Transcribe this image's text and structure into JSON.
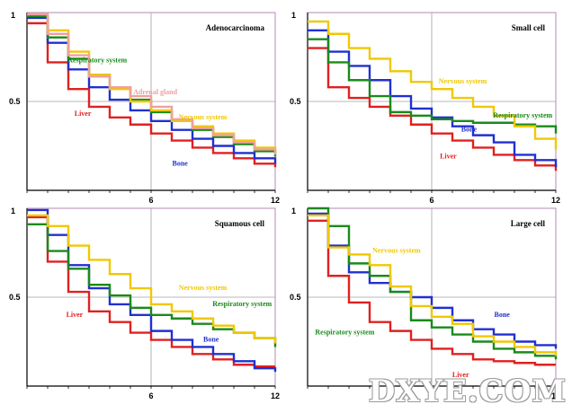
{
  "chart_data": [
    {
      "type": "line",
      "step": true,
      "title": "Adenocarcinoma",
      "xlim": [
        0,
        12
      ],
      "ylim": [
        0,
        1
      ],
      "xticks": [
        "6",
        "12"
      ],
      "yticks": [
        "1",
        "0.5"
      ],
      "series": [
        {
          "name": "Liver",
          "color": "#e02020",
          "x": [
            0,
            1,
            2,
            3,
            4,
            5,
            6,
            7,
            8,
            9,
            10,
            11,
            12
          ],
          "y": [
            0.94,
            0.72,
            0.57,
            0.47,
            0.41,
            0.37,
            0.32,
            0.28,
            0.24,
            0.21,
            0.18,
            0.15,
            0.13
          ]
        },
        {
          "name": "Bone",
          "color": "#2030d0",
          "x": [
            0,
            1,
            2,
            3,
            4,
            5,
            6,
            7,
            8,
            9,
            10,
            11,
            12
          ],
          "y": [
            0.97,
            0.83,
            0.68,
            0.58,
            0.51,
            0.45,
            0.39,
            0.34,
            0.29,
            0.25,
            0.21,
            0.18,
            0.15
          ]
        },
        {
          "name": "Respiratory system",
          "color": "#1a8a1a",
          "x": [
            0,
            1,
            2,
            3,
            4,
            5,
            6,
            7,
            8,
            9,
            10,
            11,
            12
          ],
          "y": [
            0.98,
            0.86,
            0.74,
            0.65,
            0.58,
            0.51,
            0.44,
            0.39,
            0.34,
            0.3,
            0.26,
            0.22,
            0.19
          ]
        },
        {
          "name": "Nervous system",
          "color": "#f0c800",
          "x": [
            0,
            1,
            2,
            3,
            4,
            5,
            6,
            7,
            8,
            9,
            10,
            11,
            12
          ],
          "y": [
            0.99,
            0.9,
            0.78,
            0.65,
            0.57,
            0.5,
            0.45,
            0.39,
            0.36,
            0.32,
            0.28,
            0.24,
            0.21
          ]
        },
        {
          "name": "Adrenal gland",
          "color": "#f0a0a0",
          "x": [
            0,
            1,
            2,
            3,
            4,
            5,
            6,
            7,
            8,
            9,
            10,
            11,
            12
          ],
          "y": [
            0.99,
            0.88,
            0.76,
            0.64,
            0.58,
            0.53,
            0.47,
            0.4,
            0.35,
            0.31,
            0.27,
            0.23,
            0.2
          ]
        }
      ],
      "annotations": [
        {
          "text": "Respiratory system",
          "color": "#1a8a1a",
          "x": 3.4,
          "y": 0.72
        },
        {
          "text": "Adrenal gland",
          "color": "#f0a0a0",
          "x": 6.2,
          "y": 0.54
        },
        {
          "text": "Liver",
          "color": "#e02020",
          "x": 2.7,
          "y": 0.42
        },
        {
          "text": "Nervous system",
          "color": "#f0c800",
          "x": 8.5,
          "y": 0.4
        },
        {
          "text": "Bone",
          "color": "#2030d0",
          "x": 7.4,
          "y": 0.14
        }
      ]
    },
    {
      "type": "line",
      "step": true,
      "title": "Small cell",
      "xlim": [
        0,
        12
      ],
      "ylim": [
        0,
        1
      ],
      "xticks": [
        "6",
        "12"
      ],
      "yticks": [
        "1",
        "0.5"
      ],
      "series": [
        {
          "name": "Liver",
          "color": "#e02020",
          "x": [
            0,
            1,
            2,
            3,
            4,
            5,
            6,
            7,
            8,
            9,
            10,
            11,
            12
          ],
          "y": [
            0.8,
            0.58,
            0.52,
            0.47,
            0.42,
            0.37,
            0.32,
            0.28,
            0.24,
            0.2,
            0.17,
            0.14,
            0.11
          ]
        },
        {
          "name": "Bone",
          "color": "#2030d0",
          "x": [
            0,
            1,
            2,
            3,
            4,
            5,
            6,
            7,
            8,
            9,
            10,
            11,
            12
          ],
          "y": [
            0.9,
            0.78,
            0.7,
            0.62,
            0.53,
            0.46,
            0.41,
            0.36,
            0.31,
            0.27,
            0.2,
            0.17,
            0.13
          ]
        },
        {
          "name": "Respiratory system",
          "color": "#1a8a1a",
          "x": [
            0,
            1,
            2,
            3,
            4,
            5,
            6,
            7,
            8,
            9,
            10,
            11,
            12
          ],
          "y": [
            0.85,
            0.72,
            0.62,
            0.53,
            0.44,
            0.42,
            0.4,
            0.39,
            0.38,
            0.38,
            0.37,
            0.36,
            0.32
          ]
        },
        {
          "name": "Nervous system",
          "color": "#f0c800",
          "x": [
            0,
            1,
            2,
            3,
            4,
            5,
            6,
            7,
            8,
            9,
            10,
            11,
            12
          ],
          "y": [
            0.95,
            0.88,
            0.8,
            0.74,
            0.67,
            0.61,
            0.57,
            0.52,
            0.47,
            0.42,
            0.36,
            0.29,
            0.23
          ]
        }
      ],
      "annotations": [
        {
          "text": "Nervous system",
          "color": "#f0c800",
          "x": 7.5,
          "y": 0.6
        },
        {
          "text": "Respiratory system",
          "color": "#1a8a1a",
          "x": 10.4,
          "y": 0.41
        },
        {
          "text": "Bone",
          "color": "#2030d0",
          "x": 7.8,
          "y": 0.33
        },
        {
          "text": "Liver",
          "color": "#e02020",
          "x": 6.8,
          "y": 0.18
        }
      ]
    },
    {
      "type": "line",
      "step": true,
      "title": "Squamous cell",
      "xlim": [
        0,
        12
      ],
      "ylim": [
        0,
        1
      ],
      "xticks": [
        "6",
        "12"
      ],
      "yticks": [
        "1",
        "0.5"
      ],
      "series": [
        {
          "name": "Liver",
          "color": "#e02020",
          "x": [
            0,
            1,
            2,
            3,
            4,
            5,
            6,
            7,
            8,
            9,
            10,
            11,
            12
          ],
          "y": [
            0.95,
            0.7,
            0.53,
            0.42,
            0.36,
            0.3,
            0.26,
            0.22,
            0.18,
            0.15,
            0.12,
            0.11,
            0.11
          ]
        },
        {
          "name": "Bone",
          "color": "#2030d0",
          "x": [
            0,
            1,
            2,
            3,
            4,
            5,
            6,
            7,
            8,
            9,
            10,
            11,
            12
          ],
          "y": [
            0.99,
            0.85,
            0.68,
            0.55,
            0.46,
            0.4,
            0.31,
            0.26,
            0.22,
            0.18,
            0.14,
            0.1,
            0.08
          ]
        },
        {
          "name": "Respiratory system",
          "color": "#1a8a1a",
          "x": [
            0,
            1,
            2,
            3,
            4,
            5,
            6,
            7,
            8,
            9,
            10,
            11,
            12
          ],
          "y": [
            0.91,
            0.76,
            0.66,
            0.57,
            0.51,
            0.44,
            0.4,
            0.38,
            0.35,
            0.32,
            0.3,
            0.27,
            0.22
          ]
        },
        {
          "name": "Nervous system",
          "color": "#f0c800",
          "x": [
            0,
            1,
            2,
            3,
            4,
            5,
            6,
            7,
            8,
            9,
            10,
            11,
            12
          ],
          "y": [
            0.96,
            0.9,
            0.79,
            0.71,
            0.63,
            0.55,
            0.46,
            0.42,
            0.38,
            0.34,
            0.3,
            0.27,
            0.24
          ]
        }
      ],
      "annotations": [
        {
          "text": "Nervous system",
          "color": "#f0c800",
          "x": 8.5,
          "y": 0.54
        },
        {
          "text": "Respiratory system",
          "color": "#1a8a1a",
          "x": 10.4,
          "y": 0.45
        },
        {
          "text": "Liver",
          "color": "#e02020",
          "x": 2.3,
          "y": 0.39
        },
        {
          "text": "Bone",
          "color": "#2030d0",
          "x": 8.9,
          "y": 0.25
        }
      ]
    },
    {
      "type": "line",
      "step": true,
      "title": "Large cell",
      "xlim": [
        0,
        12
      ],
      "ylim": [
        0,
        1
      ],
      "xticks": [
        "6",
        "12"
      ],
      "yticks": [
        "1",
        "0.5"
      ],
      "series": [
        {
          "name": "Liver",
          "color": "#e02020",
          "x": [
            0,
            1,
            2,
            3,
            4,
            5,
            6,
            7,
            8,
            9,
            10,
            11,
            12
          ],
          "y": [
            0.93,
            0.62,
            0.47,
            0.36,
            0.31,
            0.26,
            0.21,
            0.18,
            0.15,
            0.14,
            0.13,
            0.12,
            0.12
          ]
        },
        {
          "name": "Bone",
          "color": "#2030d0",
          "x": [
            0,
            1,
            2,
            3,
            4,
            5,
            6,
            7,
            8,
            9,
            10,
            11,
            12
          ],
          "y": [
            0.97,
            0.79,
            0.64,
            0.58,
            0.53,
            0.5,
            0.44,
            0.37,
            0.32,
            0.29,
            0.25,
            0.23,
            0.21
          ]
        },
        {
          "name": "Respiratory system",
          "color": "#1a8a1a",
          "x": [
            0,
            1,
            2,
            3,
            4,
            5,
            6,
            7,
            8,
            9,
            10,
            11,
            12
          ],
          "y": [
            1.0,
            0.9,
            0.69,
            0.62,
            0.53,
            0.37,
            0.33,
            0.29,
            0.25,
            0.21,
            0.19,
            0.17,
            0.15
          ]
        },
        {
          "name": "Nervous system",
          "color": "#f0c800",
          "x": [
            0,
            1,
            2,
            3,
            4,
            5,
            6,
            7,
            8,
            9,
            10,
            11,
            12
          ],
          "y": [
            0.96,
            0.78,
            0.74,
            0.68,
            0.56,
            0.45,
            0.39,
            0.35,
            0.28,
            0.25,
            0.22,
            0.19,
            0.17
          ]
        }
      ],
      "annotations": [
        {
          "text": "Nervous system",
          "color": "#f0c800",
          "x": 4.3,
          "y": 0.75
        },
        {
          "text": "Bone",
          "color": "#2030d0",
          "x": 9.4,
          "y": 0.39
        },
        {
          "text": "Respiratory system",
          "color": "#1a8a1a",
          "x": 1.8,
          "y": 0.29
        },
        {
          "text": "Liver",
          "color": "#e02020",
          "x": 7.4,
          "y": 0.05
        }
      ]
    }
  ],
  "watermark": "DXYE.COM"
}
